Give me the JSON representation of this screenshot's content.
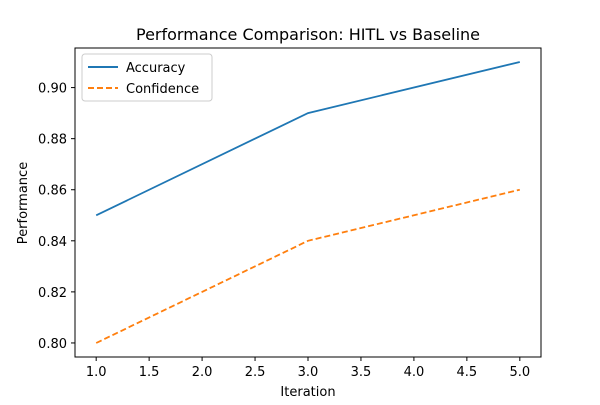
{
  "chart_data": {
    "type": "line",
    "title": "Performance Comparison: HITL vs Baseline",
    "xlabel": "Iteration",
    "ylabel": "Performance",
    "x": [
      1,
      3,
      5
    ],
    "xlim": [
      0.8,
      5.2
    ],
    "ylim": [
      0.7945,
      0.9155
    ],
    "xticks": [
      1.0,
      1.5,
      2.0,
      2.5,
      3.0,
      3.5,
      4.0,
      4.5,
      5.0
    ],
    "xtick_labels": [
      "1.0",
      "1.5",
      "2.0",
      "2.5",
      "3.0",
      "3.5",
      "4.0",
      "4.5",
      "5.0"
    ],
    "yticks": [
      0.8,
      0.82,
      0.84,
      0.86,
      0.88,
      0.9
    ],
    "ytick_labels": [
      "0.80",
      "0.82",
      "0.84",
      "0.86",
      "0.88",
      "0.90"
    ],
    "grid": false,
    "legend_position": "upper-left",
    "series": [
      {
        "name": "Accuracy",
        "values": [
          0.85,
          0.89,
          0.91
        ],
        "color": "#1f77b4",
        "style": "solid"
      },
      {
        "name": "Confidence",
        "values": [
          0.8,
          0.84,
          0.86
        ],
        "color": "#ff7f0e",
        "style": "dashed"
      }
    ]
  }
}
